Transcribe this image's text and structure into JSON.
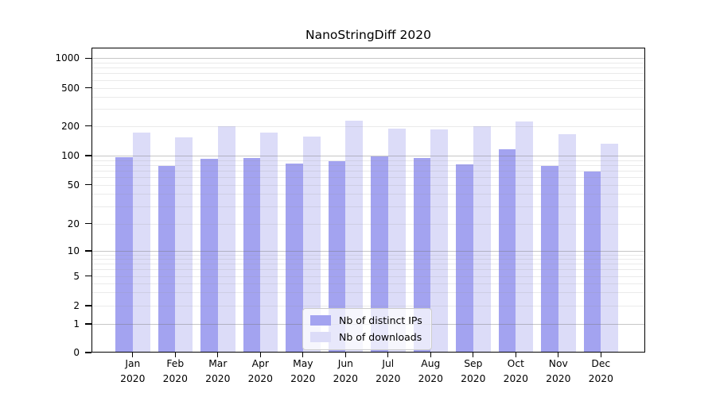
{
  "chart_data": {
    "type": "bar",
    "title": "NanoStringDiff 2020",
    "categories": [
      "Jan",
      "Feb",
      "Mar",
      "Apr",
      "May",
      "Jun",
      "Jul",
      "Aug",
      "Sep",
      "Oct",
      "Nov",
      "Dec"
    ],
    "x_sublabel": "2020",
    "series": [
      {
        "name": "Nb of distinct IPs",
        "color": "#a3a3f0",
        "values": [
          97,
          78,
          92,
          94,
          83,
          87,
          98,
          94,
          81,
          116,
          78,
          69
        ]
      },
      {
        "name": "Nb of downloads",
        "color": "#dcdcf8",
        "values": [
          170,
          152,
          200,
          171,
          155,
          228,
          188,
          183,
          199,
          222,
          166,
          131
        ]
      }
    ],
    "y_ticks": [
      0,
      1,
      2,
      5,
      10,
      20,
      50,
      100,
      200,
      500,
      1000
    ],
    "y_scale": "symlog",
    "ylim": [
      0,
      1300
    ],
    "xlabel": "",
    "ylabel": "",
    "grid": "on",
    "legend_position": "lower center"
  }
}
